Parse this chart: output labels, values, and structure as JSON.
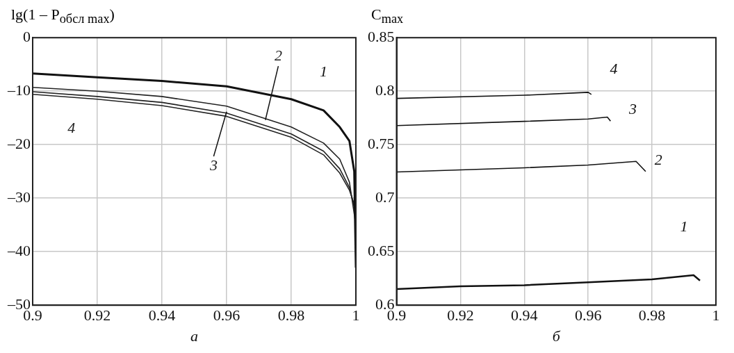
{
  "chart_data": [
    {
      "type": "line",
      "ylabel": "lg(1 – P$_{обсл max}$)",
      "xlabel": "а",
      "xlim": [
        0.9,
        1
      ],
      "xticks": [
        0.9,
        0.92,
        0.94,
        0.96,
        0.98,
        1
      ],
      "ylim": [
        -50,
        0
      ],
      "yticks": [
        {
          "value": -50,
          "label": "–50"
        },
        {
          "value": -40,
          "label": "–40"
        },
        {
          "value": -30,
          "label": "–30"
        },
        {
          "value": -20,
          "label": "–20"
        },
        {
          "value": -10,
          "label": "–10"
        },
        0
      ],
      "grid": true,
      "marker": "none",
      "line_style": "solid",
      "series": [
        {
          "name": "1",
          "color": "#111111",
          "x": [
            0.9,
            0.92,
            0.94,
            0.96,
            0.98,
            0.99,
            0.995,
            0.998,
            0.9995,
            1.0
          ],
          "values": [
            -6.7,
            -7.4,
            -8.1,
            -9.1,
            -11.5,
            -13.6,
            -16.7,
            -19.3,
            -25,
            -43
          ]
        },
        {
          "name": "2",
          "color": "#222222",
          "x": [
            0.9,
            0.92,
            0.94,
            0.96,
            0.98,
            0.99,
            0.995,
            0.998,
            1.0
          ],
          "values": [
            -9.3,
            -10,
            -11,
            -12.8,
            -16.7,
            -19.7,
            -22.7,
            -27,
            -35
          ]
        },
        {
          "name": "3",
          "color": "#222222",
          "x": [
            0.9,
            0.92,
            0.94,
            0.96,
            0.98,
            0.99,
            0.995,
            0.998,
            1.0
          ],
          "values": [
            -10.1,
            -11,
            -12.1,
            -14.1,
            -18,
            -21.2,
            -24.5,
            -28,
            -33
          ]
        },
        {
          "name": "4",
          "color": "#222222",
          "x": [
            0.9,
            0.92,
            0.94,
            0.96,
            0.98,
            0.99,
            0.995,
            0.998,
            1.0
          ],
          "values": [
            -10.6,
            -11.5,
            -12.7,
            -14.7,
            -18.6,
            -21.9,
            -25.3,
            -28.5,
            -32
          ]
        }
      ]
    },
    {
      "type": "line",
      "ylabel": "C$_{max}$",
      "xlabel": "б",
      "xlim": [
        0.9,
        1
      ],
      "xticks": [
        0.9,
        0.92,
        0.94,
        0.96,
        0.98,
        1
      ],
      "ylim": [
        0.6,
        0.85
      ],
      "yticks": [
        0.6,
        0.65,
        0.7,
        0.75,
        0.8,
        0.85
      ],
      "grid": true,
      "marker": "none",
      "line_style": "solid",
      "series": [
        {
          "name": "1",
          "color": "#111111",
          "x": [
            0.9,
            0.92,
            0.94,
            0.96,
            0.98,
            0.993,
            0.995
          ],
          "values": [
            0.615,
            0.6176,
            0.6187,
            0.6214,
            0.6242,
            0.628,
            0.623
          ]
        },
        {
          "name": "2",
          "color": "#111111",
          "x": [
            0.9,
            0.94,
            0.96,
            0.975,
            0.978
          ],
          "values": [
            0.7245,
            0.7284,
            0.731,
            0.7344,
            0.725
          ]
        },
        {
          "name": "3",
          "color": "#111111",
          "x": [
            0.9,
            0.94,
            0.96,
            0.966,
            0.967
          ],
          "values": [
            0.7678,
            0.7718,
            0.774,
            0.7758,
            0.772
          ]
        },
        {
          "name": "4",
          "color": "#111111",
          "x": [
            0.9,
            0.94,
            0.96,
            0.961
          ],
          "values": [
            0.7932,
            0.7962,
            0.7989,
            0.797
          ]
        }
      ]
    }
  ]
}
